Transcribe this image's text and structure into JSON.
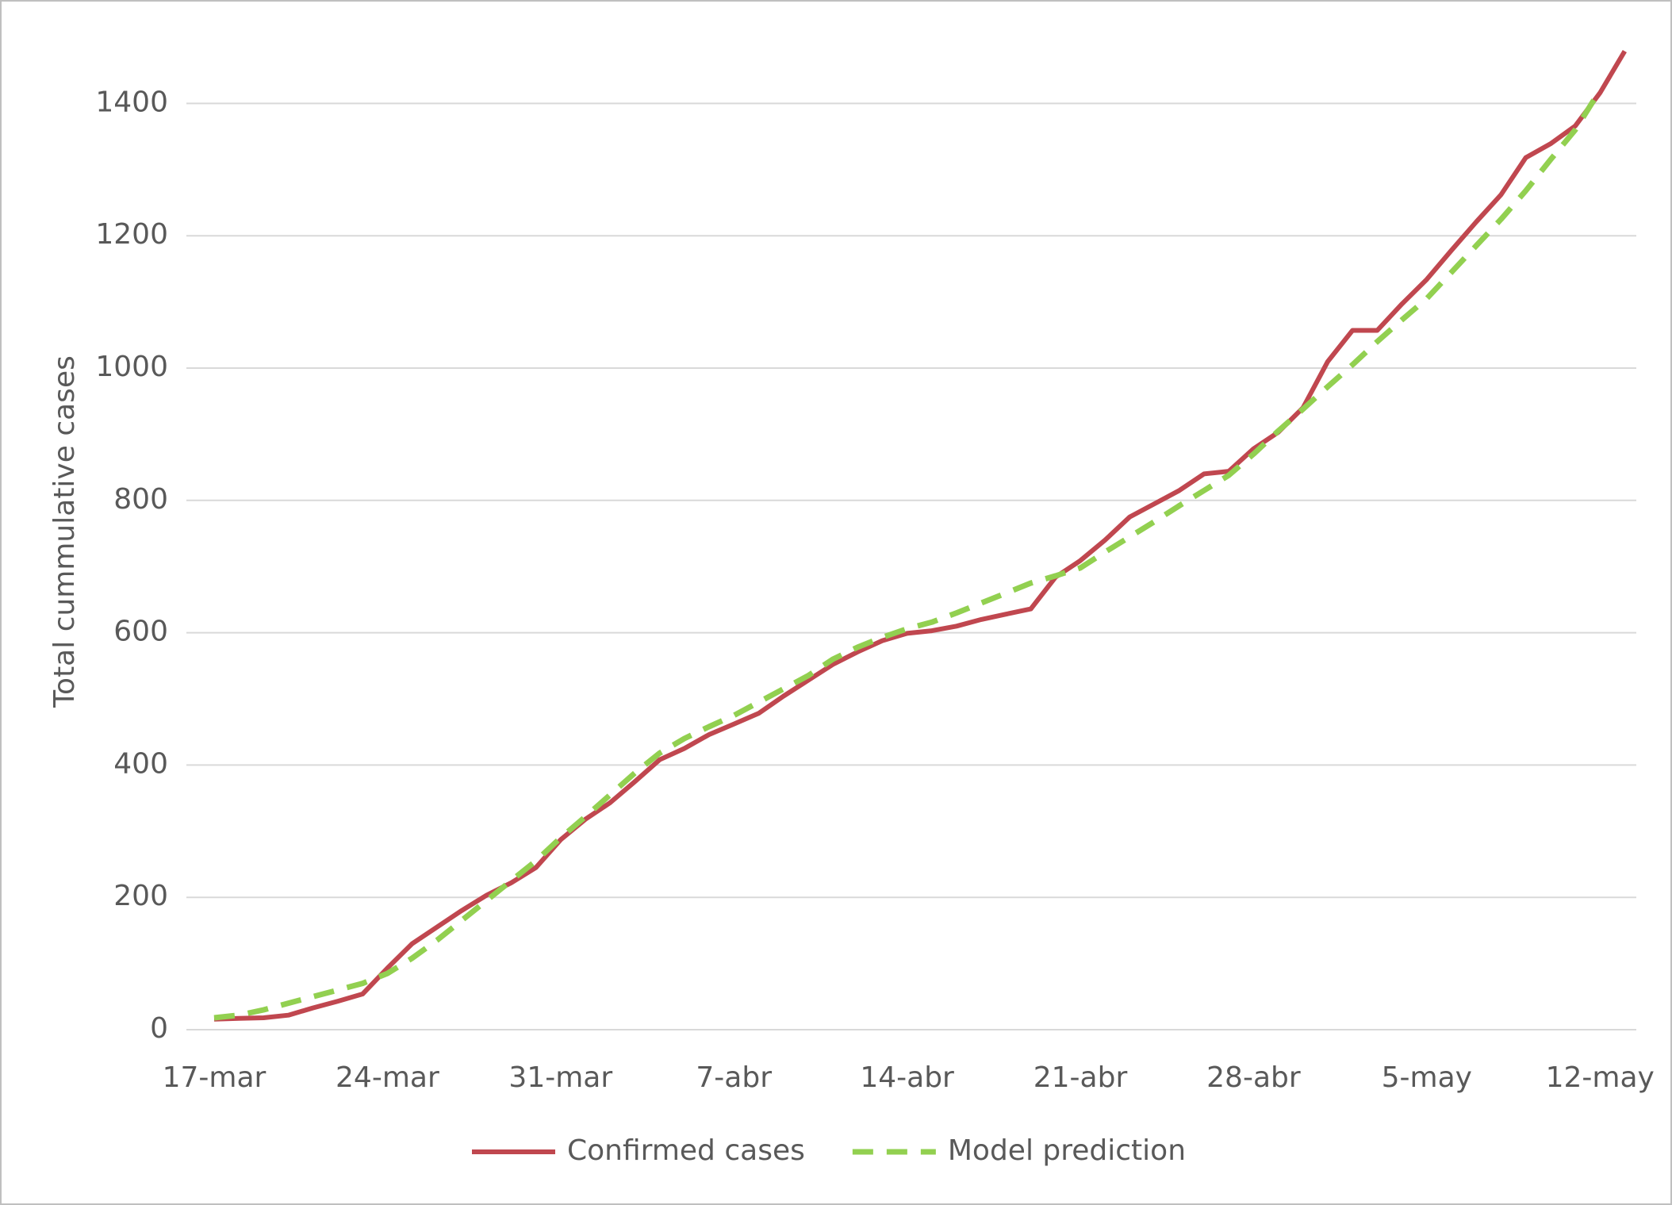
{
  "chart_data": {
    "type": "line",
    "y_label": "Total cummulative cases",
    "categories": [
      "17-mar",
      null,
      null,
      null,
      null,
      null,
      null,
      "24-mar",
      null,
      null,
      null,
      null,
      null,
      null,
      "31-mar",
      null,
      null,
      null,
      null,
      null,
      null,
      "7-abr",
      null,
      null,
      null,
      null,
      null,
      null,
      "14-abr",
      null,
      null,
      null,
      null,
      null,
      null,
      "21-abr",
      null,
      null,
      null,
      null,
      null,
      null,
      "28-abr",
      null,
      null,
      null,
      null,
      null,
      null,
      "5-may",
      null,
      null,
      null,
      null,
      null,
      null,
      "12-may",
      null
    ],
    "series": [
      {
        "name": "Confirmed cases",
        "color": "#c0474f",
        "dash": false,
        "values": [
          16,
          17,
          18,
          22,
          33,
          43,
          54,
          93,
          130,
          155,
          180,
          203,
          222,
          245,
          287,
          318,
          343,
          375,
          408,
          425,
          446,
          462,
          478,
          504,
          528,
          552,
          571,
          588,
          599,
          603,
          610,
          620,
          628,
          636,
          684,
          709,
          740,
          775,
          795,
          815,
          840,
          844,
          878,
          903,
          940,
          1010,
          1057,
          1057,
          1097,
          1134,
          1178,
          1221,
          1262,
          1318,
          1339,
          1366,
          1416,
          1479
        ]
      },
      {
        "name": "Model prediction",
        "color": "#92d050",
        "dash": true,
        "values": [
          18,
          22,
          30,
          40,
          50,
          60,
          70,
          85,
          108,
          135,
          165,
          195,
          225,
          255,
          290,
          322,
          355,
          388,
          418,
          440,
          458,
          475,
          495,
          515,
          535,
          560,
          578,
          593,
          606,
          616,
          630,
          645,
          660,
          675,
          686,
          698,
          722,
          745,
          768,
          792,
          815,
          838,
          870,
          905,
          938,
          972,
          1005,
          1040,
          1073,
          1105,
          1145,
          1185,
          1225,
          1268,
          1315,
          1360,
          1420,
          null
        ]
      }
    ],
    "ylim": [
      0,
      1500
    ],
    "yticks": [
      0,
      200,
      400,
      600,
      800,
      1000,
      1200,
      1400
    ],
    "grid": true,
    "legend": "bottom"
  }
}
